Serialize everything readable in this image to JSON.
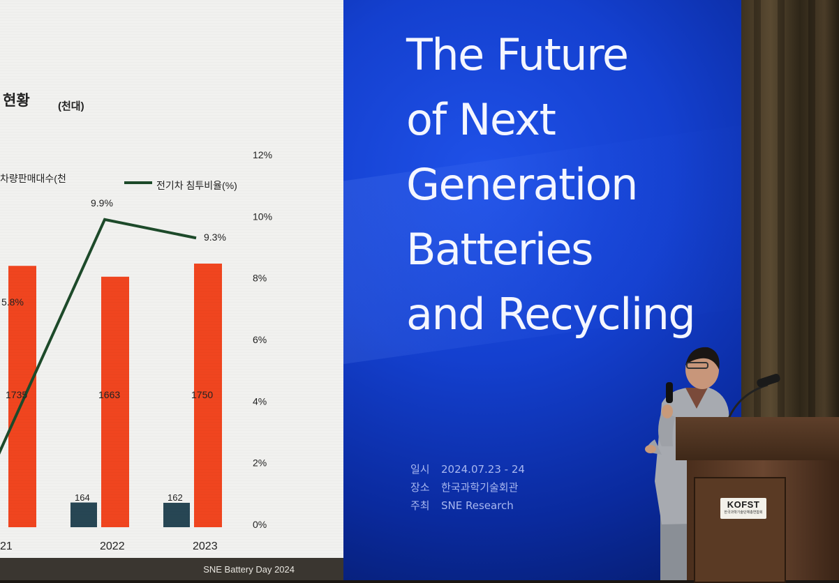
{
  "left_slide": {
    "title_fragment": "현황",
    "unit": "(천대)",
    "legend_sales_fragment": "차량판매대수(천",
    "legend_rate": "전기차 침투비율(%)",
    "footer": "SNE Battery Day 2024",
    "chart_data": {
      "type": "bar",
      "categories": [
        "21",
        "2022",
        "2023"
      ],
      "series": [
        {
          "values": [
            null,
            164,
            162
          ]
        },
        {
          "values": [
            1735,
            1663,
            1750
          ]
        },
        {
          "name": "전기차 침투비율(%)",
          "values": [
            5.8,
            9.9,
            9.3
          ]
        }
      ],
      "bar_labels_small": [
        "164",
        "162"
      ],
      "bar_labels_large": [
        "1735",
        "1663",
        "1750"
      ],
      "rate_labels": [
        "5.8%",
        "9.9%",
        "9.3%"
      ],
      "y2_ticks": [
        "0%",
        "2%",
        "4%",
        "6%",
        "8%",
        "10%",
        "12%"
      ],
      "y2lim": [
        0,
        12
      ]
    },
    "colors": {
      "bar_total": "#f0451f",
      "bar_ev": "#274654",
      "line": "#1d4a2a"
    }
  },
  "right_slide": {
    "title_lines": [
      "The Future",
      "of Next",
      "Generation",
      "Batteries",
      "and Recycling"
    ],
    "info": [
      {
        "label": "일시",
        "value": "2024.07.23 - 24"
      },
      {
        "label": "장소",
        "value": "한국과학기술회관"
      },
      {
        "label": "주최",
        "value": "SNE Research"
      }
    ]
  },
  "podium": {
    "logo": "KOFST",
    "logo_sub": "한국과학기술단체총연합회"
  }
}
